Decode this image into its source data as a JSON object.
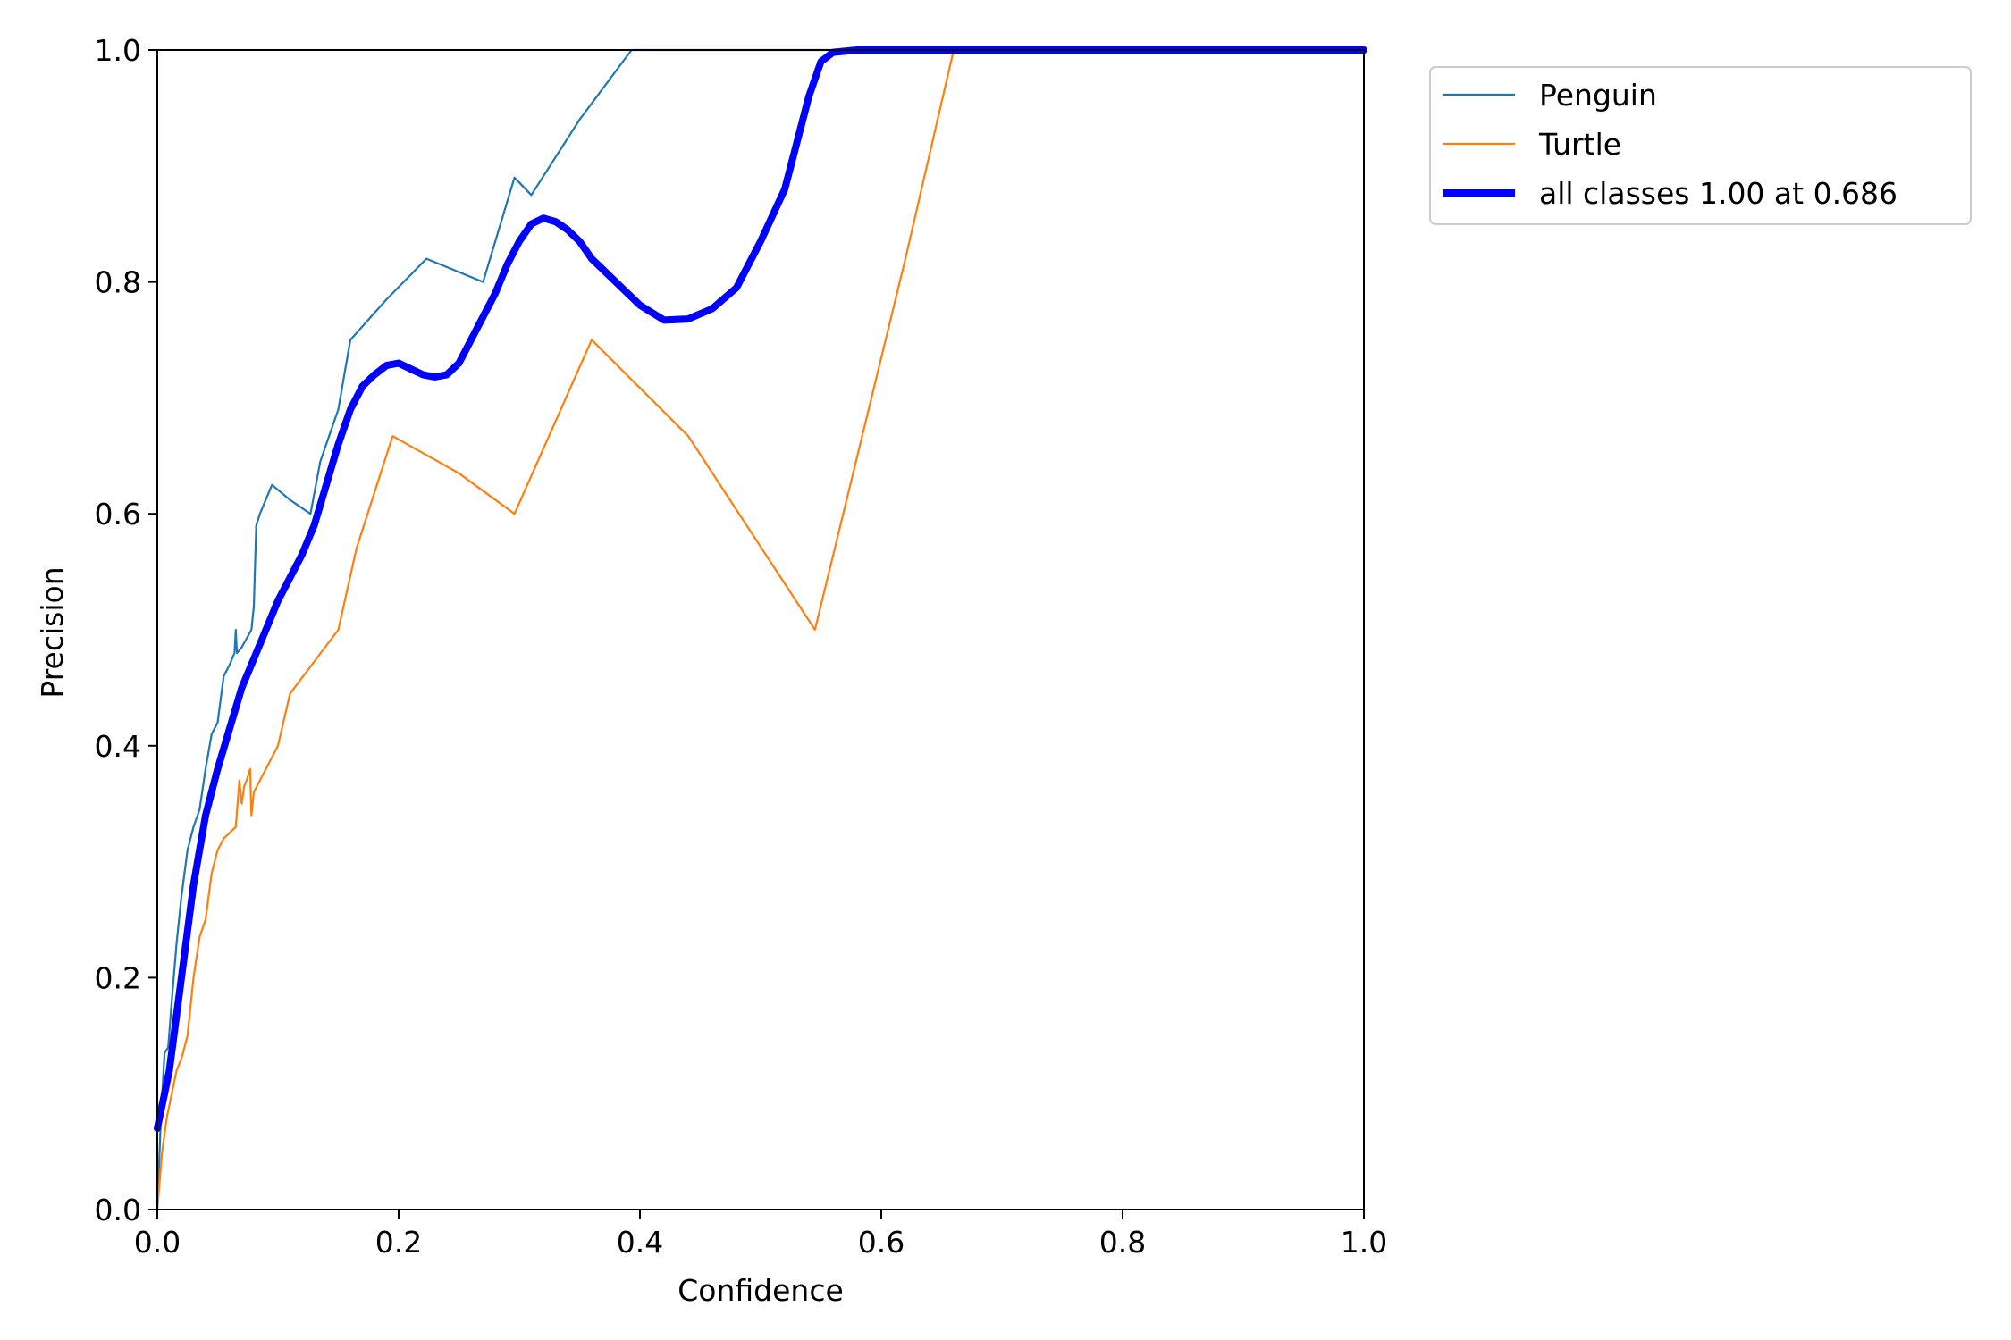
{
  "chart_data": {
    "type": "line",
    "title": "",
    "xlabel": "Confidence",
    "ylabel": "Precision",
    "xlim": [
      0,
      1
    ],
    "ylim": [
      0,
      1
    ],
    "xticks": [
      "0.0",
      "0.2",
      "0.4",
      "0.6",
      "0.8",
      "1.0"
    ],
    "yticks": [
      "0.0",
      "0.2",
      "0.4",
      "0.6",
      "0.8",
      "1.0"
    ],
    "grid": false,
    "legend_position": "outside-top-right",
    "series": [
      {
        "name": "Penguin",
        "color": "#1f77b4",
        "x": [
          0.0,
          0.003,
          0.006,
          0.009,
          0.012,
          0.016,
          0.02,
          0.025,
          0.03,
          0.035,
          0.04,
          0.045,
          0.05,
          0.055,
          0.06,
          0.064,
          0.065,
          0.066,
          0.07,
          0.078,
          0.08,
          0.082,
          0.085,
          0.095,
          0.11,
          0.127,
          0.135,
          0.15,
          0.16,
          0.19,
          0.223,
          0.27,
          0.296,
          0.31,
          0.35,
          0.393,
          0.45,
          0.5,
          0.6,
          0.7,
          0.8,
          0.9,
          1.0
        ],
        "y": [
          0.0,
          0.08,
          0.135,
          0.14,
          0.18,
          0.23,
          0.27,
          0.31,
          0.33,
          0.345,
          0.38,
          0.41,
          0.42,
          0.46,
          0.47,
          0.48,
          0.5,
          0.48,
          0.485,
          0.5,
          0.52,
          0.59,
          0.6,
          0.625,
          0.612,
          0.6,
          0.645,
          0.69,
          0.75,
          0.785,
          0.82,
          0.8,
          0.89,
          0.875,
          0.94,
          1.0,
          1.0,
          1.0,
          1.0,
          1.0,
          1.0,
          1.0,
          1.0
        ]
      },
      {
        "name": "Turtle",
        "color": "#ff7f0e",
        "x": [
          0.0,
          0.004,
          0.008,
          0.012,
          0.016,
          0.02,
          0.025,
          0.03,
          0.035,
          0.04,
          0.045,
          0.05,
          0.055,
          0.065,
          0.068,
          0.07,
          0.072,
          0.074,
          0.077,
          0.078,
          0.08,
          0.1,
          0.11,
          0.15,
          0.165,
          0.195,
          0.25,
          0.296,
          0.36,
          0.44,
          0.545,
          0.62,
          0.66,
          0.7,
          0.8,
          0.9,
          1.0
        ],
        "y": [
          0.0,
          0.05,
          0.08,
          0.1,
          0.12,
          0.13,
          0.15,
          0.2,
          0.235,
          0.25,
          0.29,
          0.31,
          0.32,
          0.33,
          0.37,
          0.35,
          0.365,
          0.37,
          0.38,
          0.34,
          0.36,
          0.4,
          0.445,
          0.5,
          0.57,
          0.667,
          0.635,
          0.6,
          0.75,
          0.667,
          0.5,
          0.82,
          1.0,
          1.0,
          1.0,
          1.0,
          1.0
        ]
      },
      {
        "name": "all classes 1.00 at 0.686",
        "color": "#0000ff",
        "bold": true,
        "x": [
          0.0,
          0.01,
          0.02,
          0.03,
          0.04,
          0.05,
          0.06,
          0.07,
          0.08,
          0.09,
          0.1,
          0.11,
          0.12,
          0.13,
          0.14,
          0.15,
          0.16,
          0.17,
          0.18,
          0.19,
          0.2,
          0.21,
          0.22,
          0.23,
          0.24,
          0.25,
          0.26,
          0.27,
          0.28,
          0.29,
          0.3,
          0.31,
          0.32,
          0.33,
          0.34,
          0.35,
          0.36,
          0.37,
          0.38,
          0.39,
          0.4,
          0.42,
          0.44,
          0.46,
          0.48,
          0.5,
          0.52,
          0.53,
          0.54,
          0.55,
          0.56,
          0.58,
          0.6,
          0.62,
          0.64,
          0.66,
          0.68,
          0.686,
          0.7,
          0.8,
          0.9,
          1.0
        ],
        "y": [
          0.07,
          0.12,
          0.2,
          0.28,
          0.34,
          0.38,
          0.415,
          0.45,
          0.475,
          0.5,
          0.525,
          0.545,
          0.565,
          0.59,
          0.625,
          0.66,
          0.69,
          0.71,
          0.72,
          0.728,
          0.73,
          0.725,
          0.72,
          0.718,
          0.72,
          0.73,
          0.75,
          0.77,
          0.79,
          0.815,
          0.835,
          0.85,
          0.855,
          0.852,
          0.845,
          0.835,
          0.82,
          0.81,
          0.8,
          0.79,
          0.78,
          0.767,
          0.768,
          0.777,
          0.795,
          0.835,
          0.88,
          0.92,
          0.96,
          0.99,
          0.998,
          1.0,
          1.0,
          1.0,
          1.0,
          1.0,
          1.0,
          1.0,
          1.0,
          1.0,
          1.0,
          1.0
        ]
      }
    ]
  }
}
